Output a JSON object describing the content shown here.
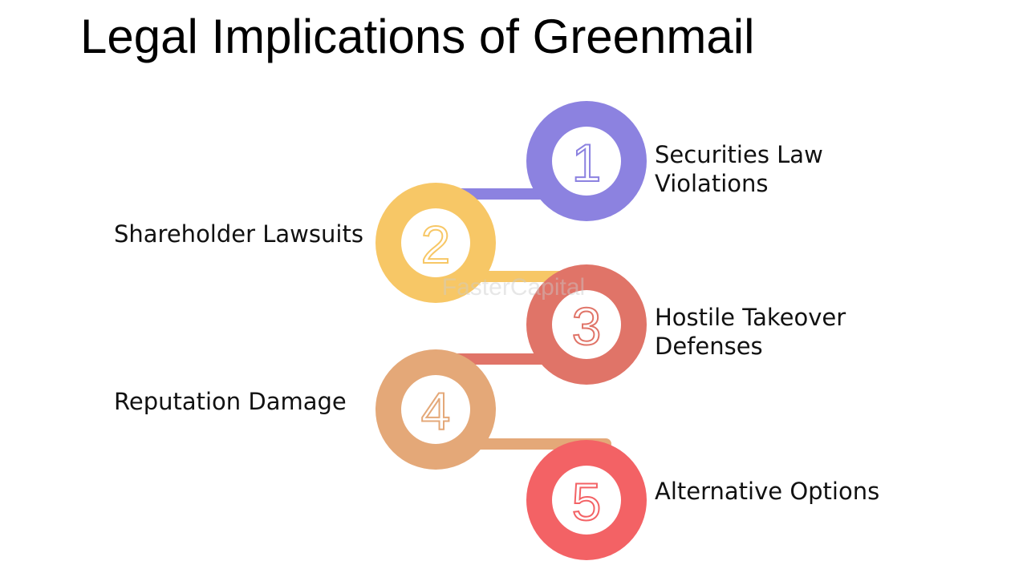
{
  "title": "Legal Implications of Greenmail",
  "watermark": "FasterCapital",
  "steps": [
    {
      "number": "1",
      "label_line1": "Securities Law",
      "label_line2": "Violations",
      "color": "#8C82E0"
    },
    {
      "number": "2",
      "label_line1": "Shareholder Lawsuits",
      "label_line2": "",
      "color": "#F7C766"
    },
    {
      "number": "3",
      "label_line1": "Hostile Takeover",
      "label_line2": "Defenses",
      "color": "#E07468"
    },
    {
      "number": "4",
      "label_line1": "Reputation Damage",
      "label_line2": "",
      "color": "#E4A878"
    },
    {
      "number": "5",
      "label_line1": "Alternative Options",
      "label_line2": "",
      "color": "#F36265"
    }
  ]
}
